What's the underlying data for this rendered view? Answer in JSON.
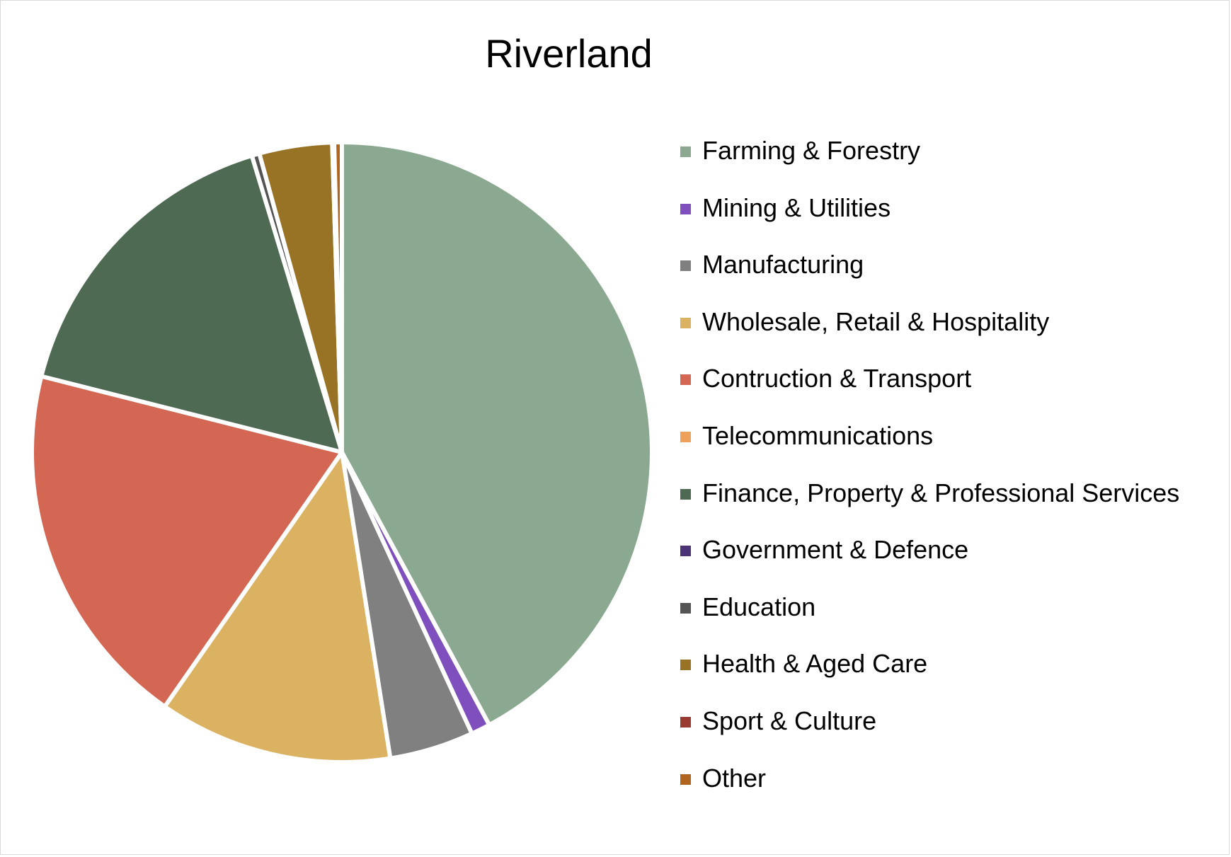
{
  "chart_data": {
    "type": "pie",
    "title": "Riverland",
    "legend_position": "right",
    "start_angle_deg": 0,
    "direction": "clockwise",
    "slices": [
      {
        "label": "Farming & Forestry",
        "value": 42.2,
        "color": "#8BA990"
      },
      {
        "label": "Mining & Utilities",
        "value": 1.0,
        "color": "#7E4FBD"
      },
      {
        "label": "Manufacturing",
        "value": 4.4,
        "color": "#808080"
      },
      {
        "label": "Wholesale, Retail & Hospitality",
        "value": 12.2,
        "color": "#DAB262"
      },
      {
        "label": "Contruction & Transport",
        "value": 19.3,
        "color": "#D36753"
      },
      {
        "label": "Telecommunications",
        "value": 0.0,
        "color": "#EDA15B"
      },
      {
        "label": "Finance, Property & Professional Services",
        "value": 16.4,
        "color": "#4E6A52"
      },
      {
        "label": "Government & Defence",
        "value": 0.0,
        "color": "#4B3375"
      },
      {
        "label": "Education",
        "value": 0.4,
        "color": "#545454"
      },
      {
        "label": "Health & Aged Care",
        "value": 3.8,
        "color": "#987225"
      },
      {
        "label": "Sport & Culture",
        "value": 0.1,
        "color": "#983A2F"
      },
      {
        "label": "Other",
        "value": 0.4,
        "color": "#B0651F"
      }
    ]
  }
}
